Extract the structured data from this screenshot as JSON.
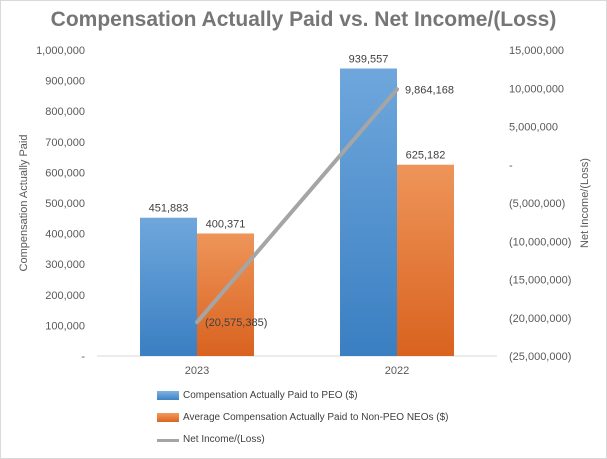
{
  "chart_data": {
    "type": "bar+line",
    "title": "Compensation Actually Paid vs. Net Income/(Loss)",
    "categories": [
      "2023",
      "2022"
    ],
    "ylabel": "Compensation Actually Paid",
    "y2label": "Net Income/(Loss)",
    "ylim": [
      0,
      1000000
    ],
    "y2lim": [
      -25000000,
      15000000
    ],
    "yticks": [
      "-",
      "100,000",
      "200,000",
      "300,000",
      "400,000",
      "500,000",
      "600,000",
      "700,000",
      "800,000",
      "900,000",
      "1,000,000"
    ],
    "y2ticks": [
      "(25,000,000)",
      "(20,000,000)",
      "(15,000,000)",
      "(10,000,000)",
      "(5,000,000)",
      "-",
      "5,000,000",
      "10,000,000",
      "15,000,000"
    ],
    "series": [
      {
        "name": "Compensation Actually Paid to PEO ($)",
        "kind": "bar",
        "axis": "left",
        "color": "#5b9bd5",
        "values": [
          451883,
          939557
        ],
        "labels": [
          "451,883",
          "939,557"
        ]
      },
      {
        "name": "Average Compensation Actually Paid to Non-PEO NEOs ($)",
        "kind": "bar",
        "axis": "left",
        "color": "#ed7d31",
        "values": [
          400371,
          625182
        ],
        "labels": [
          "400,371",
          "625,182"
        ]
      },
      {
        "name": "Net Income/(Loss)",
        "kind": "line",
        "axis": "right",
        "color": "#a5a5a5",
        "values": [
          -20575385,
          9864168
        ],
        "labels": [
          "(20,575,385)",
          "9,864,168"
        ]
      }
    ],
    "grid": false,
    "legend_position": "bottom"
  }
}
